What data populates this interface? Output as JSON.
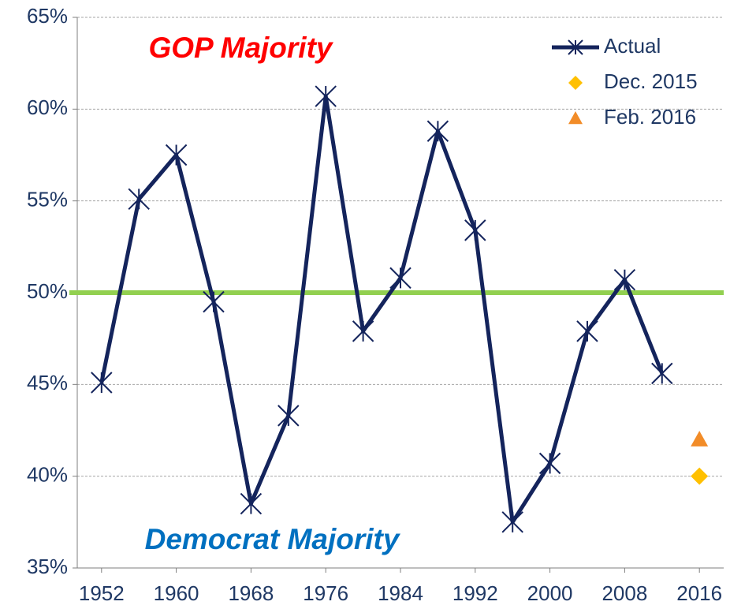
{
  "chart_data": {
    "type": "line",
    "annotations": [
      {
        "text": "GOP Majority",
        "color": "#ff0000"
      },
      {
        "text": "Democrat Majority",
        "color": "#0070c0"
      }
    ],
    "series": [
      {
        "name": "Actual",
        "color": "#14245c",
        "marker": "asterisk",
        "x": [
          1952,
          1956,
          1960,
          1964,
          1968,
          1972,
          1976,
          1980,
          1984,
          1988,
          1992,
          1996,
          2000,
          2004,
          2008,
          2012
        ],
        "values": [
          45.1,
          55.1,
          57.5,
          49.5,
          38.5,
          43.3,
          60.7,
          47.9,
          50.8,
          58.8,
          53.4,
          37.5,
          40.7,
          47.9,
          50.7,
          45.6
        ]
      },
      {
        "name": "Dec. 2015",
        "color": "#ffc000",
        "marker": "diamond",
        "x": [
          2016
        ],
        "values": [
          40
        ]
      },
      {
        "name": "Feb. 2016",
        "color": "#f28c28",
        "marker": "triangle",
        "x": [
          2016
        ],
        "values": [
          42
        ]
      }
    ],
    "reference_line": {
      "value": 50,
      "color": "#92d050"
    },
    "xlim": [
      1949.4,
      2018.6
    ],
    "xticks": [
      1952,
      1960,
      1968,
      1976,
      1984,
      1992,
      2000,
      2008,
      2016
    ],
    "ylim": [
      35,
      65
    ],
    "yticks": [
      {
        "value": 35,
        "label": "35%"
      },
      {
        "value": 40,
        "label": "40%"
      },
      {
        "value": 45,
        "label": "45%"
      },
      {
        "value": 50,
        "label": "50%"
      },
      {
        "value": 55,
        "label": "55%"
      },
      {
        "value": 60,
        "label": "60%"
      },
      {
        "value": 65,
        "label": "65%"
      }
    ],
    "grid": true,
    "legend": "top-right"
  }
}
